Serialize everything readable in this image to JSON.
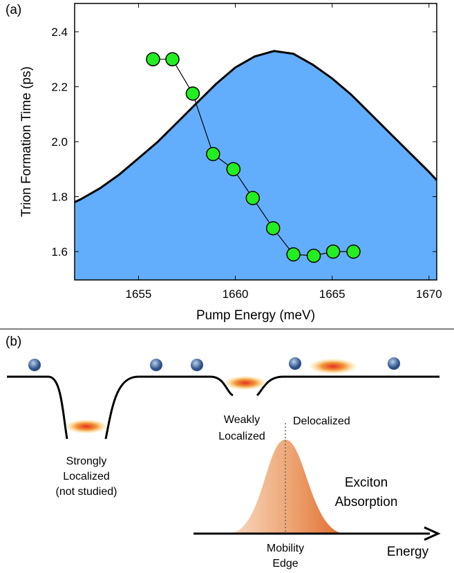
{
  "panel_a_label": "(a)",
  "chart_data": {
    "type": "line",
    "x_label": "Pump Energy (meV)",
    "y_label": "Trion Formation Time (ps)",
    "xlim": [
      1651.7,
      1670.4
    ],
    "ylim": [
      1.497,
      2.503
    ],
    "xticks": [
      1655,
      1660,
      1665,
      1670
    ],
    "yticks": [
      1.6,
      1.8,
      2.0,
      2.2,
      2.4
    ],
    "grid": false,
    "area": {
      "color": "#63aefc",
      "line_color": "#000000",
      "x": [
        1651.7,
        1652,
        1653,
        1654,
        1655,
        1656,
        1657,
        1658,
        1659,
        1660,
        1661,
        1662,
        1663,
        1664,
        1665,
        1666,
        1667,
        1668,
        1669,
        1670,
        1670.4
      ],
      "values": [
        1.78,
        1.79,
        1.83,
        1.88,
        1.94,
        2.0,
        2.07,
        2.14,
        2.21,
        2.27,
        2.31,
        2.33,
        2.32,
        2.28,
        2.23,
        2.17,
        2.1,
        2.03,
        1.96,
        1.89,
        1.86
      ]
    },
    "series": [
      {
        "color": "#22ee22",
        "x": [
          1655.75,
          1656.75,
          1657.8,
          1658.85,
          1659.9,
          1660.9,
          1661.95,
          1663.0,
          1664.05,
          1665.05,
          1666.1
        ],
        "values": [
          2.3,
          2.3,
          2.175,
          1.955,
          1.9,
          1.795,
          1.685,
          1.59,
          1.585,
          1.6,
          1.6
        ]
      }
    ]
  },
  "diagram": {
    "panel_label": "(b)",
    "strongly": [
      "Strongly",
      "Localized",
      "(not studied)"
    ],
    "weakly": [
      "Weakly",
      "Localized"
    ],
    "delocalized": "Delocalized",
    "absorption": [
      "Exciton",
      "Absorption"
    ],
    "mobility_edge": [
      "Mobility",
      "Edge"
    ],
    "energy": "Energy"
  }
}
